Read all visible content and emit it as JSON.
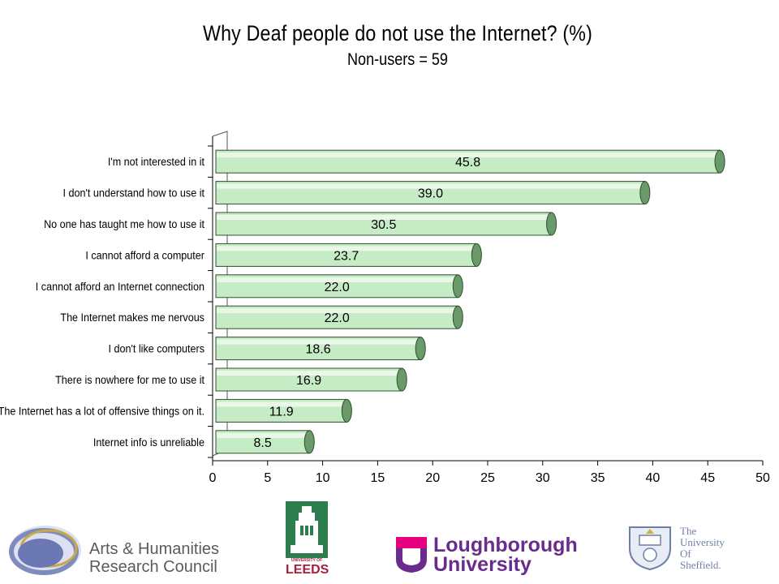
{
  "chart_data": {
    "type": "bar",
    "orientation": "horizontal",
    "title": "Why Deaf people do not use the Internet? (%)",
    "subtitle": "Non-users = 59",
    "categories": [
      "I'm not interested in it",
      "I don't understand how to use it",
      "No one has taught me how to use it",
      "I cannot afford a computer",
      "I cannot afford an Internet connection",
      "The Internet makes me nervous",
      "I don't like computers",
      "There is nowhere for me to use it",
      "The Internet has a lot of offensive things on it.",
      "Internet info is unreliable"
    ],
    "values": [
      45.8,
      39.0,
      30.5,
      23.7,
      22.0,
      22.0,
      18.6,
      16.9,
      11.9,
      8.5
    ],
    "value_labels": [
      "45.8",
      "39.0",
      "30.5",
      "23.7",
      "22.0",
      "22.0",
      "18.6",
      "16.9",
      "11.9",
      "8.5"
    ],
    "xlim": [
      0,
      50
    ],
    "xticks": [
      0,
      5,
      10,
      15,
      20,
      25,
      30,
      35,
      40,
      45,
      50
    ],
    "grid": false,
    "legend": "none",
    "bar_color": "#c6ecc6",
    "bar_edge_color": "#2f4f2f",
    "bar_end_color": "#6a9a6a"
  },
  "logos": {
    "ahrc": {
      "line1": "Arts & Humanities",
      "line2": "Research Council"
    },
    "leeds": {
      "small": "UNIVERSITY OF",
      "big": "LEEDS"
    },
    "loughborough": {
      "line1": "Loughborough",
      "line2": "University"
    },
    "sheffield": {
      "line1": "The",
      "line2": "University",
      "line3": "Of",
      "line4": "Sheffield."
    }
  },
  "colors": {
    "ahrc_ring": "#8a93c4",
    "leeds_green": "#2e7d4f",
    "loughborough_purple": "#6a2c8c",
    "sheffield_blue": "#6f7fa8"
  }
}
